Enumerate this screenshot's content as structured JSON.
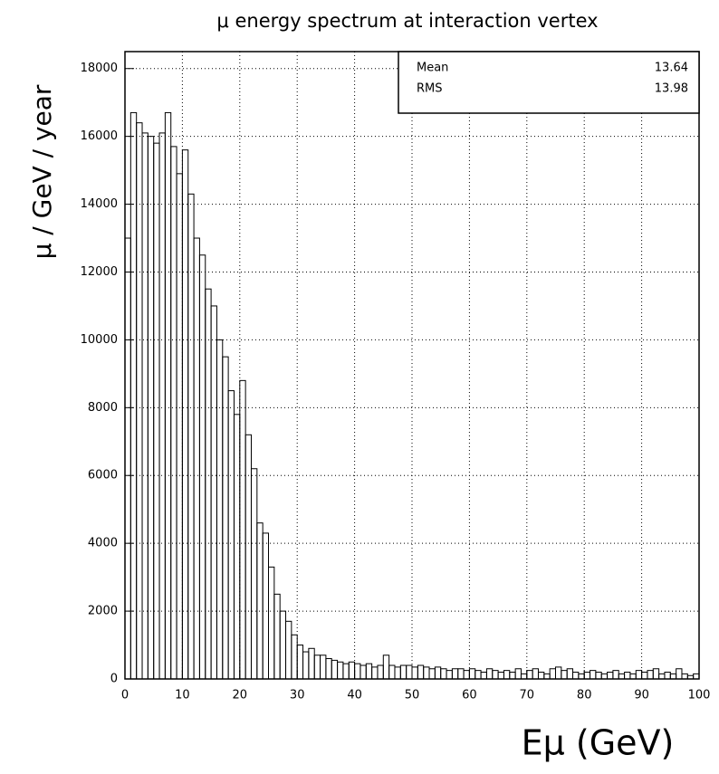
{
  "chart_data": {
    "type": "histogram",
    "title": "μ energy spectrum at interaction vertex",
    "x_label": "Eμ (GeV)",
    "y_label": "μ / GeV / year",
    "bins": [
      0,
      1,
      2,
      3,
      4,
      5,
      6,
      7,
      8,
      9,
      10,
      11,
      12,
      13,
      14,
      15,
      16,
      17,
      18,
      19,
      20,
      21,
      22,
      23,
      24,
      25,
      26,
      27,
      28,
      29,
      30,
      31,
      32,
      33,
      34,
      35,
      36,
      37,
      38,
      39,
      40,
      41,
      42,
      43,
      44,
      45,
      46,
      47,
      48,
      49,
      50,
      51,
      52,
      53,
      54,
      55,
      56,
      57,
      58,
      59,
      60,
      61,
      62,
      63,
      64,
      65,
      66,
      67,
      68,
      69,
      70,
      71,
      72,
      73,
      74,
      75,
      76,
      77,
      78,
      79,
      80,
      81,
      82,
      83,
      84,
      85,
      86,
      87,
      88,
      89,
      90,
      91,
      92,
      93,
      94,
      95,
      96,
      97,
      98,
      99,
      100
    ],
    "values": [
      13000,
      16700,
      16400,
      16100,
      16000,
      15800,
      16100,
      16700,
      15700,
      14900,
      15600,
      14300,
      13000,
      12500,
      11500,
      11000,
      10000,
      9500,
      8500,
      7800,
      8800,
      7200,
      6200,
      4600,
      4300,
      3300,
      2500,
      2000,
      1700,
      1300,
      1000,
      800,
      900,
      700,
      700,
      600,
      550,
      500,
      450,
      500,
      450,
      400,
      450,
      350,
      400,
      700,
      400,
      350,
      400,
      400,
      350,
      400,
      350,
      300,
      350,
      300,
      250,
      300,
      300,
      250,
      300,
      250,
      200,
      300,
      250,
      200,
      250,
      200,
      300,
      150,
      250,
      300,
      200,
      150,
      300,
      350,
      250,
      300,
      200,
      150,
      200,
      250,
      200,
      150,
      200,
      250,
      150,
      200,
      150,
      250,
      200,
      250,
      300,
      150,
      200,
      150,
      300,
      150,
      100,
      150
    ],
    "color": "#000000",
    "xlim": [
      0,
      100
    ],
    "ylim": [
      0,
      18500
    ],
    "xticks": [
      0,
      10,
      20,
      30,
      40,
      50,
      60,
      70,
      80,
      90,
      100
    ],
    "yticks": [
      0,
      2000,
      4000,
      6000,
      8000,
      10000,
      12000,
      14000,
      16000,
      18000
    ],
    "grid": true,
    "stats": {
      "labels": [
        "Mean",
        "RMS"
      ],
      "values": [
        13.64,
        13.98
      ]
    }
  }
}
